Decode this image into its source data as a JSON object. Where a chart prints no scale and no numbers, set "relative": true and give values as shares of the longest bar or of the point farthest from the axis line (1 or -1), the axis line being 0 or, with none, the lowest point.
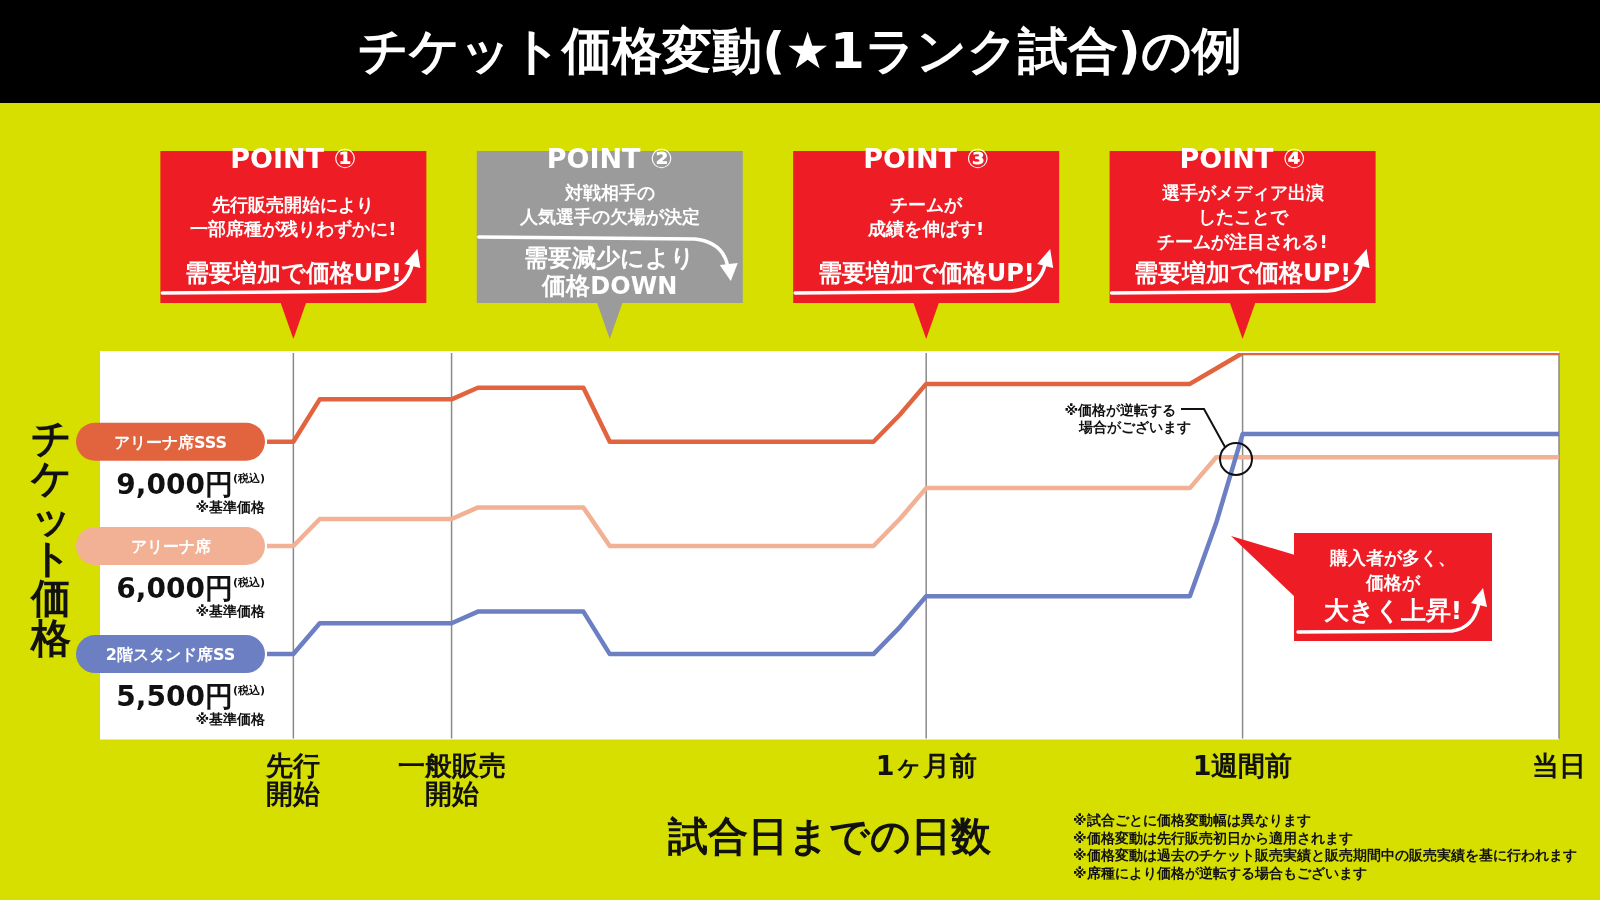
{
  "chart_data": {
    "type": "line",
    "title": "チケット価格変動(★1ランク試合)の例",
    "xlabel": "試合日までの日数",
    "ylabel": "チケット価格",
    "relative": true,
    "grid": "x",
    "categories": [
      null,
      "先行開始",
      null,
      null,
      null,
      null,
      null,
      "一般販売開始",
      null,
      null,
      null,
      null,
      null,
      null,
      null,
      null,
      null,
      null,
      null,
      null,
      null,
      null,
      null,
      null,
      null,
      "1ヶ月前",
      null,
      null,
      null,
      null,
      null,
      null,
      null,
      null,
      null,
      null,
      null,
      "1週間前",
      null,
      null,
      null,
      null,
      null,
      null,
      null,
      null,
      null,
      null,
      null,
      "当日"
    ],
    "series": [
      {
        "name": "アリーナ席SSS",
        "color": "#e2643f",
        "values": [
          0.77,
          0.77,
          0.88,
          0.88,
          0.88,
          0.88,
          0.88,
          0.88,
          0.91,
          0.91,
          0.91,
          0.91,
          0.91,
          0.77,
          0.77,
          0.77,
          0.77,
          0.77,
          0.77,
          0.77,
          0.77,
          0.77,
          0.77,
          0.77,
          0.84,
          0.92,
          0.92,
          0.92,
          0.92,
          0.92,
          0.92,
          0.92,
          0.92,
          0.92,
          0.92,
          0.92,
          0.96,
          1,
          1,
          1,
          1,
          1,
          1,
          1,
          1,
          1,
          1,
          1,
          1,
          1
        ]
      },
      {
        "name": "アリーナ席",
        "color": "#f2b194",
        "values": [
          0.5,
          0.5,
          0.57,
          0.57,
          0.57,
          0.57,
          0.57,
          0.57,
          0.6,
          0.6,
          0.6,
          0.6,
          0.6,
          0.5,
          0.5,
          0.5,
          0.5,
          0.5,
          0.5,
          0.5,
          0.5,
          0.5,
          0.5,
          0.5,
          0.57,
          0.65,
          0.65,
          0.65,
          0.65,
          0.65,
          0.65,
          0.65,
          0.65,
          0.65,
          0.65,
          0.65,
          0.73,
          0.73,
          0.73,
          0.73,
          0.73,
          0.73,
          0.73,
          0.73,
          0.73,
          0.73,
          0.73,
          0.73,
          0.73,
          0.73
        ]
      },
      {
        "name": "2階スタンド席SS",
        "color": "#6b7fc2",
        "values": [
          0.22,
          0.22,
          0.3,
          0.3,
          0.3,
          0.3,
          0.3,
          0.3,
          0.33,
          0.33,
          0.33,
          0.33,
          0.33,
          0.22,
          0.22,
          0.22,
          0.22,
          0.22,
          0.22,
          0.22,
          0.22,
          0.22,
          0.22,
          0.22,
          0.29,
          0.37,
          0.37,
          0.37,
          0.37,
          0.37,
          0.37,
          0.37,
          0.37,
          0.37,
          0.37,
          0.37,
          0.56,
          0.79,
          0.79,
          0.79,
          0.79,
          0.79,
          0.79,
          0.79,
          0.79,
          0.79,
          0.79,
          0.79,
          0.79,
          0.79
        ]
      }
    ],
    "annotations": [
      "POINT ①",
      "先行販売開始により一部席種が残りわずかに!",
      "需要増加で価格UP!",
      "POINT ②",
      "対戦相手の人気選手の欠場が決定",
      "需要減少により価格DOWN",
      "POINT ③",
      "チームが成績を伸ばす!",
      "需要増加で価格UP!",
      "POINT ④",
      "選手がメディア出演したことでチームが注目される!",
      "需要増加で価格UP!",
      "9,000円$^{(税込)}$",
      "※基準価格",
      "6,000円$^{(税込)}$",
      "※基準価格",
      "5,500円$^{(税込)}$",
      "※基準価格",
      "※価格が逆転する場合がございます",
      "購入者が多く、価格が",
      "大きく上昇!",
      "※試合ごとに価格変動幅は異なります",
      "※価格変動は先行販売初日から適用されます",
      "※価格変動は過去のチケット販売実績と販売期間中の販売実績を基に行われます",
      "※席種により価格が逆転する場合もございます"
    ]
  }
}
